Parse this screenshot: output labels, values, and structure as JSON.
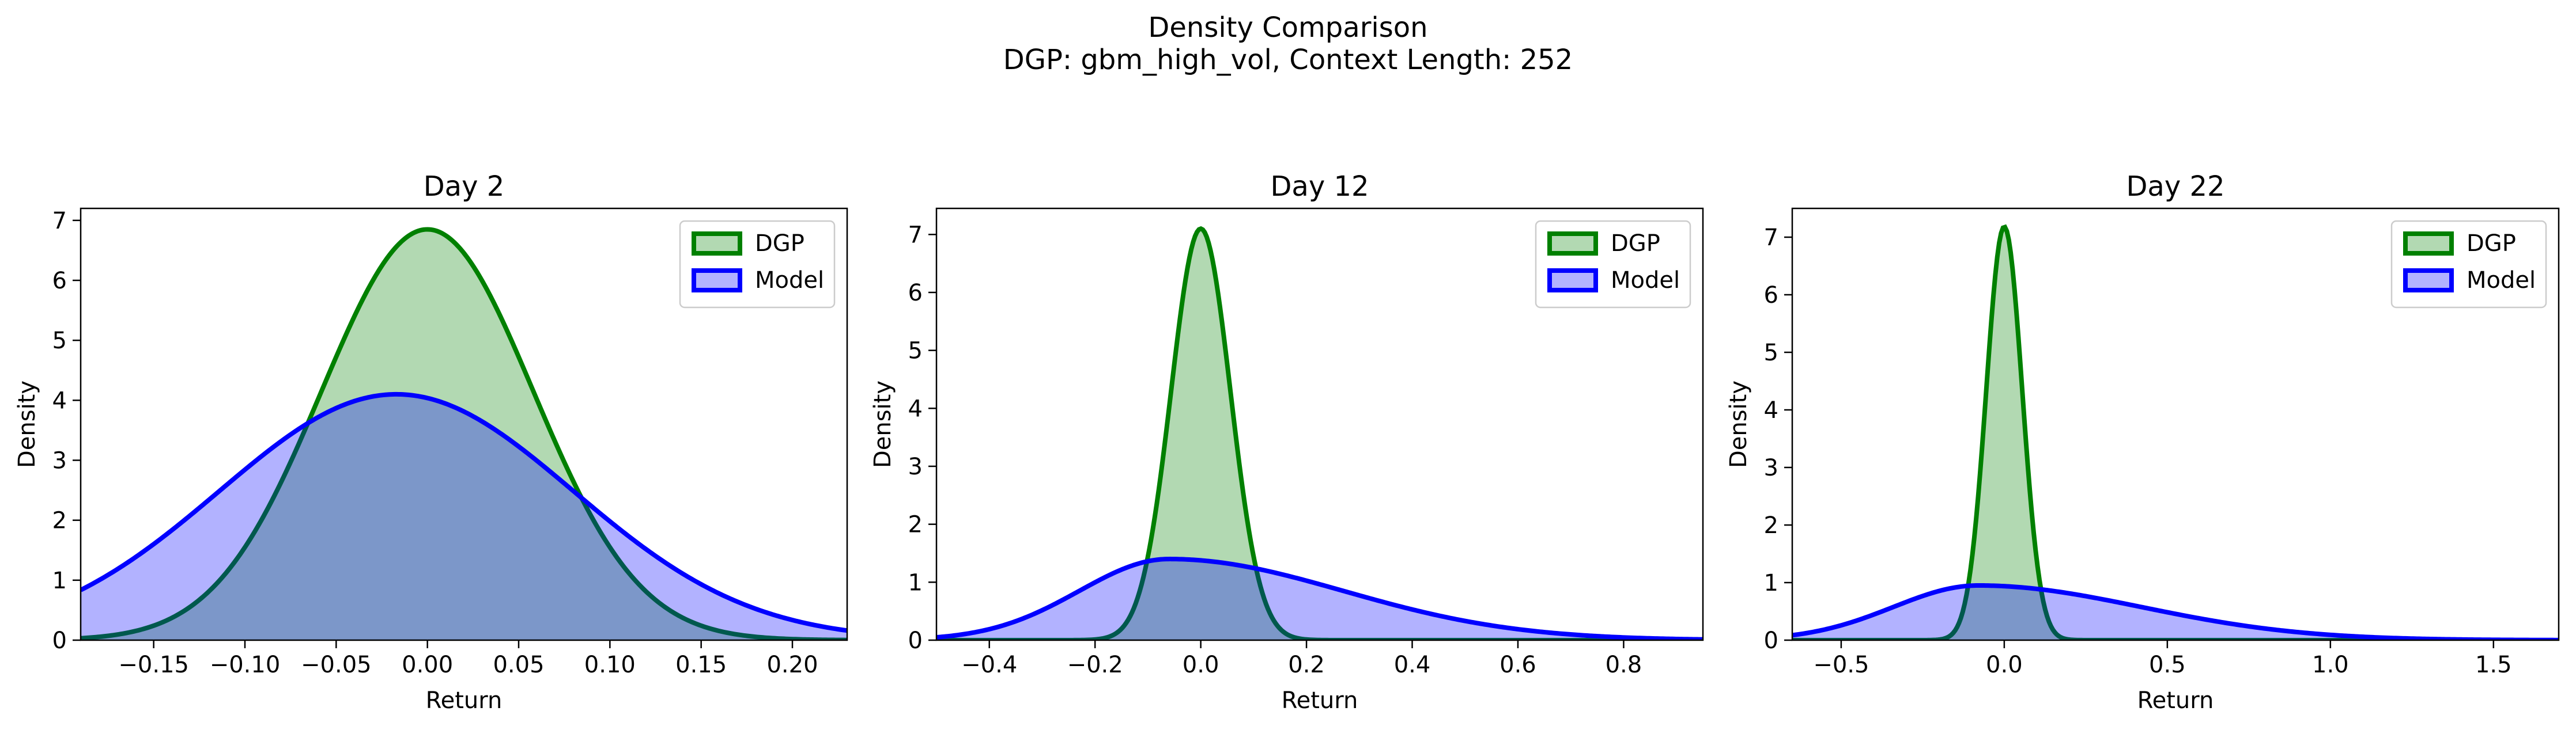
{
  "figure": {
    "title_line1": "Density Comparison",
    "title_line2": "DGP: gbm_high_vol, Context Length: 252"
  },
  "chart_data": [
    {
      "type": "area",
      "title": "Day 2",
      "xlabel": "Return",
      "ylabel": "Density",
      "xlim": [
        -0.19,
        0.23
      ],
      "ylim": [
        0,
        7.2
      ],
      "xticks": [
        -0.15,
        -0.1,
        -0.05,
        0.0,
        0.05,
        0.1,
        0.15,
        0.2
      ],
      "xtick_labels": [
        "−0.15",
        "−0.10",
        "−0.05",
        "0.00",
        "0.05",
        "0.10",
        "0.15",
        "0.20"
      ],
      "yticks": [
        0,
        1,
        2,
        3,
        4,
        5,
        6,
        7
      ],
      "ytick_labels": [
        "0",
        "1",
        "2",
        "3",
        "4",
        "5",
        "6",
        "7"
      ],
      "legend_position": "top-right",
      "grid": false,
      "series": [
        {
          "name": "DGP",
          "distribution": "normal",
          "mean": 0.0,
          "sd": 0.058,
          "peak_density": 6.85,
          "line_color": "#008000",
          "fill_color": "#008000",
          "fill_opacity": 0.3
        },
        {
          "name": "Model",
          "distribution": "normal",
          "mean": -0.017,
          "sd": 0.097,
          "peak_density": 4.1,
          "line_color": "#0000ff",
          "fill_color": "#0000ff",
          "fill_opacity": 0.3
        }
      ]
    },
    {
      "type": "area",
      "title": "Day 12",
      "xlabel": "Return",
      "ylabel": "Density",
      "xlim": [
        -0.5,
        0.95
      ],
      "ylim": [
        0,
        7.45
      ],
      "xticks": [
        -0.4,
        -0.2,
        0.0,
        0.2,
        0.4,
        0.6,
        0.8
      ],
      "xtick_labels": [
        "−0.4",
        "−0.2",
        "0.0",
        "0.2",
        "0.4",
        "0.6",
        "0.8"
      ],
      "yticks": [
        0,
        1,
        2,
        3,
        4,
        5,
        6,
        7
      ],
      "ytick_labels": [
        "0",
        "1",
        "2",
        "3",
        "4",
        "5",
        "6",
        "7"
      ],
      "legend_position": "top-right",
      "grid": false,
      "series": [
        {
          "name": "DGP",
          "distribution": "normal",
          "mean": 0.0,
          "sd": 0.056,
          "peak_density": 7.1,
          "line_color": "#008000",
          "fill_color": "#008000",
          "fill_opacity": 0.3
        },
        {
          "name": "Model",
          "distribution": "skew_normal",
          "mode": -0.06,
          "peak_density": 1.4,
          "sd_left": 0.17,
          "sd_right": 0.33,
          "line_color": "#0000ff",
          "fill_color": "#0000ff",
          "fill_opacity": 0.3
        }
      ]
    },
    {
      "type": "area",
      "title": "Day 22",
      "xlabel": "Return",
      "ylabel": "Density",
      "xlim": [
        -0.65,
        1.7
      ],
      "ylim": [
        0,
        7.5
      ],
      "xticks": [
        -0.5,
        0.0,
        0.5,
        1.0,
        1.5
      ],
      "xtick_labels": [
        "−0.5",
        "0.0",
        "0.5",
        "1.0",
        "1.5"
      ],
      "yticks": [
        0,
        1,
        2,
        3,
        4,
        5,
        6,
        7
      ],
      "ytick_labels": [
        "0",
        "1",
        "2",
        "3",
        "4",
        "5",
        "6",
        "7"
      ],
      "legend_position": "top-right",
      "grid": false,
      "series": [
        {
          "name": "DGP",
          "distribution": "normal",
          "mean": 0.0,
          "sd": 0.055,
          "peak_density": 7.18,
          "line_color": "#008000",
          "fill_color": "#008000",
          "fill_opacity": 0.3
        },
        {
          "name": "Model",
          "distribution": "skew_normal",
          "mode": -0.08,
          "peak_density": 0.95,
          "sd_left": 0.26,
          "sd_right": 0.5,
          "line_color": "#0000ff",
          "fill_color": "#0000ff",
          "fill_opacity": 0.3
        }
      ]
    }
  ]
}
